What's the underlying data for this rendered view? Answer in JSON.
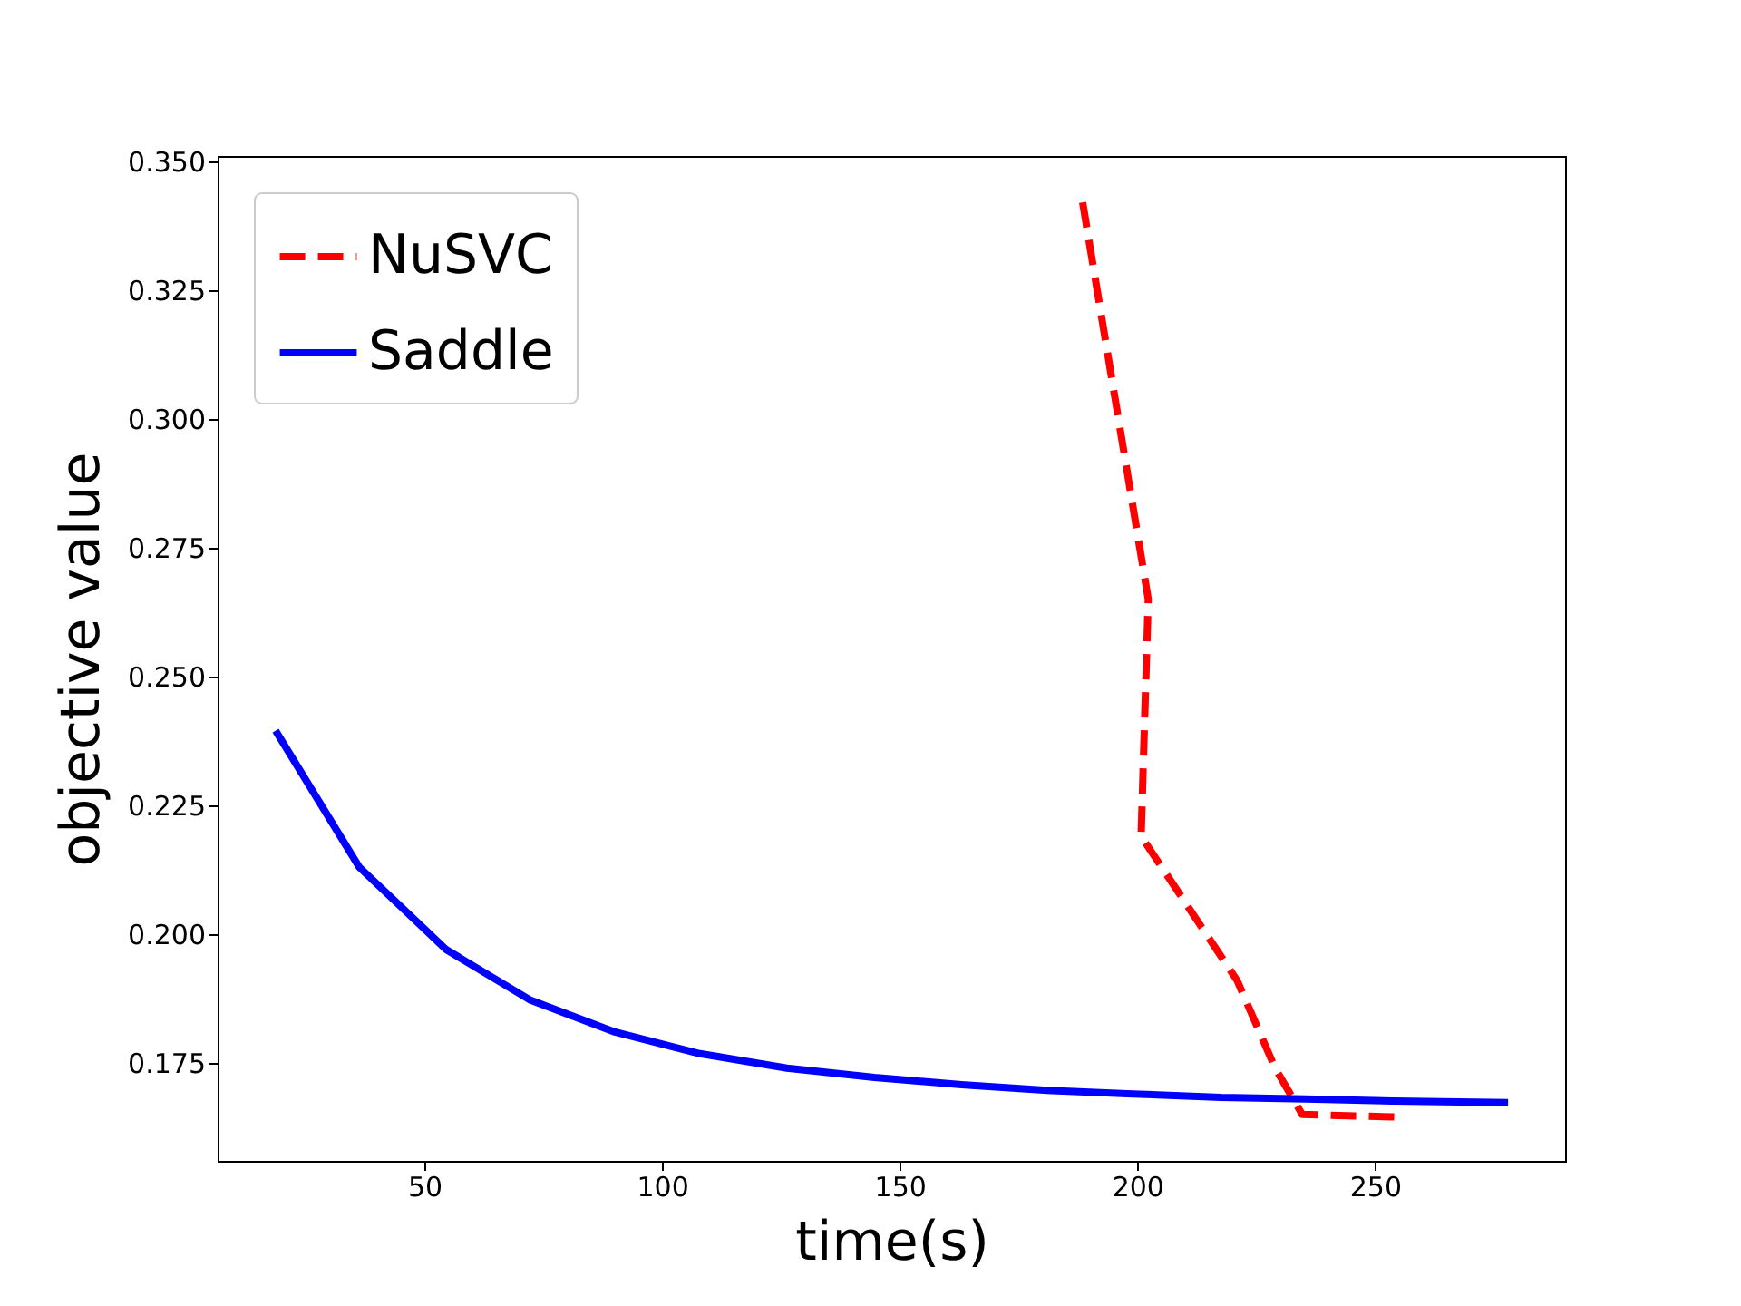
{
  "chart_data": {
    "type": "line",
    "xlabel": "time(s)",
    "ylabel": "objective value",
    "legend": "top left",
    "xlim": [
      6.5,
      290
    ],
    "ylim": [
      0.156,
      0.351
    ],
    "xticks": [
      50,
      100,
      150,
      200,
      250
    ],
    "yticks": [
      {
        "value": 0.175,
        "label": "0.175"
      },
      {
        "value": 0.2,
        "label": "0.200"
      },
      {
        "value": 0.225,
        "label": "0.225"
      },
      {
        "value": 0.25,
        "label": "0.250"
      },
      {
        "value": 0.275,
        "label": "0.275"
      },
      {
        "value": 0.3,
        "label": "0.300"
      },
      {
        "value": 0.325,
        "label": "0.325"
      },
      {
        "value": 0.35,
        "label": "0.350"
      }
    ],
    "series": [
      {
        "name": "NuSVC",
        "color": "#ff0000",
        "line_style": "dashed",
        "x": [
          188.5,
          202.3,
          200.8,
          221,
          229,
          234.7,
          255
        ],
        "values": [
          0.342,
          0.265,
          0.219,
          0.191,
          0.174,
          0.165,
          0.1645
        ]
      },
      {
        "name": "Saddle",
        "color": "#0000ff",
        "line_style": "solid",
        "x": [
          18.7,
          36.3,
          54.6,
          72.1,
          90.1,
          108,
          126.3,
          144.7,
          163,
          181,
          199,
          217.6,
          235.5,
          253.8,
          278
        ],
        "values": [
          0.2395,
          0.213,
          0.197,
          0.1873,
          0.181,
          0.1768,
          0.174,
          0.1722,
          0.1708,
          0.1697,
          0.169,
          0.1683,
          0.168,
          0.1676,
          0.1673
        ]
      }
    ]
  }
}
